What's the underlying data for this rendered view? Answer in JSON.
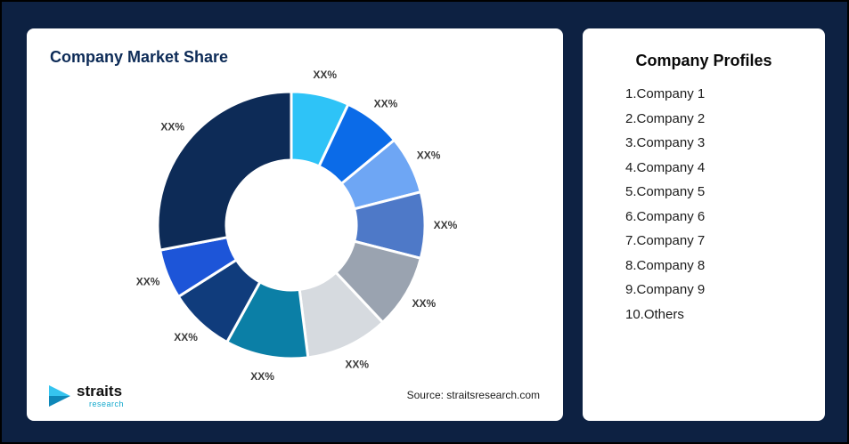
{
  "page": {
    "background_color": "#0D2142"
  },
  "market_share_card": {
    "title": "Company Market Share",
    "source_text": "Source: straitsresearch.com",
    "logo": {
      "brand": "straits",
      "sub_brand": "research",
      "icon_color_top": "#35C4EF",
      "icon_color_bottom": "#0E87B8"
    }
  },
  "profiles_card": {
    "title": "Company Profiles",
    "items": [
      "1.Company 1",
      "2.Company 2",
      "3.Company 3",
      "4.Company 4",
      "5.Company 5",
      "6.Company 6",
      "7.Company 7",
      "8.Company 8",
      "9.Company 9",
      "10.Others"
    ]
  },
  "chart_data": {
    "type": "pie",
    "subtype": "donut",
    "title": "Company Market Share",
    "legend_position": "none",
    "start_angle_deg": 0,
    "direction": "clockwise",
    "slice_label_text": "XX%",
    "series": [
      {
        "name": "Company 1",
        "value": 7,
        "color": "#2EC3F7",
        "label": "XX%"
      },
      {
        "name": "Company 2",
        "value": 7,
        "color": "#0B6BE8",
        "label": "XX%"
      },
      {
        "name": "Company 3",
        "value": 7,
        "color": "#6EA6F4",
        "label": "XX%"
      },
      {
        "name": "Company 4",
        "value": 8,
        "color": "#4E79C8",
        "label": "XX%"
      },
      {
        "name": "Company 5",
        "value": 9,
        "color": "#9AA3B0",
        "label": "XX%"
      },
      {
        "name": "Company 6",
        "value": 10,
        "color": "#D6DADF",
        "label": "XX%"
      },
      {
        "name": "Company 7",
        "value": 10,
        "color": "#0B7FA6",
        "label": "XX%"
      },
      {
        "name": "Company 8",
        "value": 8,
        "color": "#103C7C",
        "label": "XX%"
      },
      {
        "name": "Company 9",
        "value": 6,
        "color": "#1D55D8",
        "label": "XX%"
      },
      {
        "name": "Others",
        "value": 28,
        "color": "#0D2B57",
        "label": "XX%"
      }
    ]
  }
}
